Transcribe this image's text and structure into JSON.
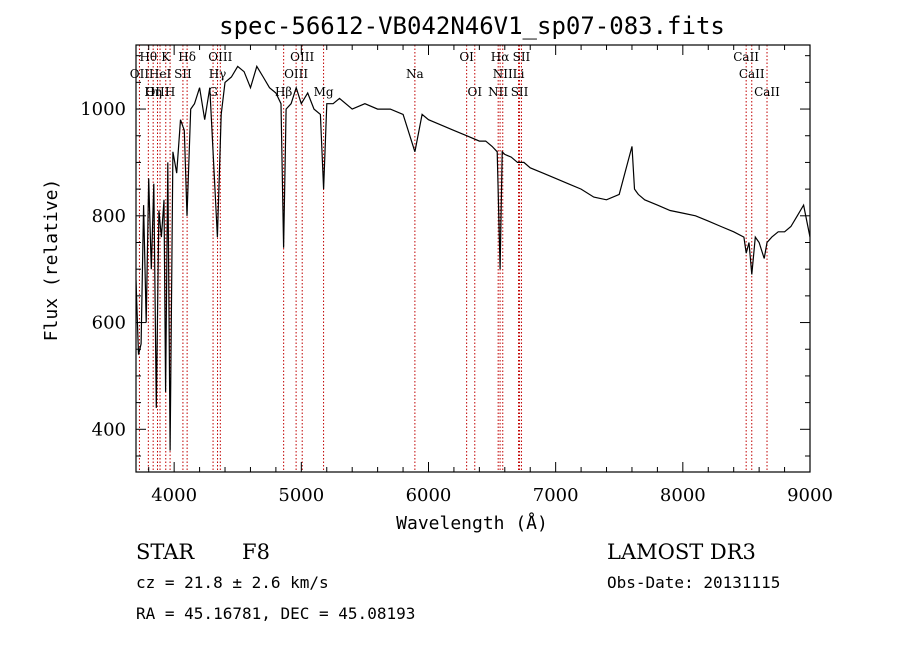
{
  "chart_data": {
    "type": "line",
    "title": "spec-56612-VB042N46V1_sp07-083.fits",
    "xlabel": "Wavelength (Å)",
    "ylabel": "Flux (relative)",
    "xlim": [
      3700,
      9000
    ],
    "ylim": [
      320,
      1120
    ],
    "xticks": [
      4000,
      5000,
      6000,
      7000,
      8000,
      9000
    ],
    "yticks": [
      400,
      600,
      800,
      1000
    ],
    "series": [
      {
        "name": "flux",
        "x": [
          3700,
          3720,
          3740,
          3760,
          3780,
          3800,
          3820,
          3840,
          3860,
          3880,
          3900,
          3920,
          3933,
          3950,
          3968,
          3990,
          4020,
          4050,
          4080,
          4101,
          4130,
          4160,
          4200,
          4240,
          4280,
          4310,
          4340,
          4370,
          4400,
          4450,
          4500,
          4550,
          4600,
          4650,
          4700,
          4750,
          4800,
          4840,
          4861,
          4880,
          4920,
          4960,
          5000,
          5050,
          5100,
          5150,
          5175,
          5200,
          5250,
          5300,
          5400,
          5500,
          5600,
          5700,
          5800,
          5893,
          5950,
          6000,
          6100,
          6200,
          6300,
          6400,
          6450,
          6500,
          6540,
          6563,
          6580,
          6600,
          6650,
          6700,
          6750,
          6800,
          6900,
          7000,
          7100,
          7200,
          7300,
          7400,
          7500,
          7600,
          7620,
          7650,
          7700,
          7800,
          7900,
          8000,
          8100,
          8200,
          8300,
          8400,
          8480,
          8498,
          8520,
          8542,
          8570,
          8600,
          8640,
          8662,
          8700,
          8750,
          8800,
          8850,
          8900,
          8950,
          9000
        ],
        "y": [
          680,
          540,
          560,
          820,
          600,
          870,
          700,
          860,
          440,
          810,
          760,
          830,
          470,
          900,
          360,
          920,
          880,
          980,
          960,
          800,
          1000,
          1010,
          1040,
          980,
          1040,
          900,
          760,
          990,
          1050,
          1060,
          1080,
          1070,
          1040,
          1080,
          1060,
          1040,
          1030,
          1010,
          740,
          1000,
          1010,
          1040,
          1010,
          1030,
          1000,
          990,
          850,
          1010,
          1010,
          1020,
          1000,
          1010,
          1000,
          1000,
          990,
          920,
          990,
          980,
          970,
          960,
          950,
          940,
          940,
          930,
          920,
          700,
          920,
          915,
          910,
          900,
          900,
          890,
          880,
          870,
          860,
          850,
          835,
          830,
          840,
          930,
          850,
          840,
          830,
          820,
          810,
          805,
          800,
          790,
          780,
          770,
          760,
          730,
          750,
          690,
          760,
          750,
          720,
          750,
          760,
          770,
          770,
          780,
          800,
          820,
          760
        ]
      }
    ],
    "line_groups": [
      {
        "row": 0,
        "labels": [
          "Hθ",
          "K",
          "Hδ",
          "OIII",
          "OIII",
          "OI",
          "Hα",
          "SII",
          "CaII"
        ],
        "wavelengths": [
          3797,
          3934,
          4102,
          4363,
          5007,
          6300,
          6563,
          6731,
          8498
        ]
      },
      {
        "row": 1,
        "labels": [
          "OII",
          "HeI",
          "SII",
          "Hγ",
          "OIII",
          "Na",
          "NII",
          "Li",
          "CaII"
        ],
        "wavelengths": [
          3727,
          3889,
          4069,
          4341,
          4959,
          5893,
          6584,
          6708,
          8542
        ]
      },
      {
        "row": 2,
        "labels": [
          "OIII",
          "Hη",
          "H",
          "G",
          "Hβ",
          "Mg",
          "OI",
          "NII",
          "SII",
          "CaII"
        ],
        "wavelengths": [
          3869,
          3835,
          3968,
          4306,
          4861,
          5175,
          6364,
          6548,
          6716,
          8662
        ]
      }
    ]
  },
  "info": {
    "object_class": "STAR",
    "subclass": "F8",
    "redshift": "cz = 21.8 ± 2.6 km/s",
    "coords": "RA =  45.16781, DEC =  45.08193",
    "survey": "LAMOST DR3",
    "obs_date": "Obs-Date: 20131115"
  },
  "colors": {
    "line": "#000000",
    "marker_lines": "#c00000",
    "axis": "#000000"
  }
}
